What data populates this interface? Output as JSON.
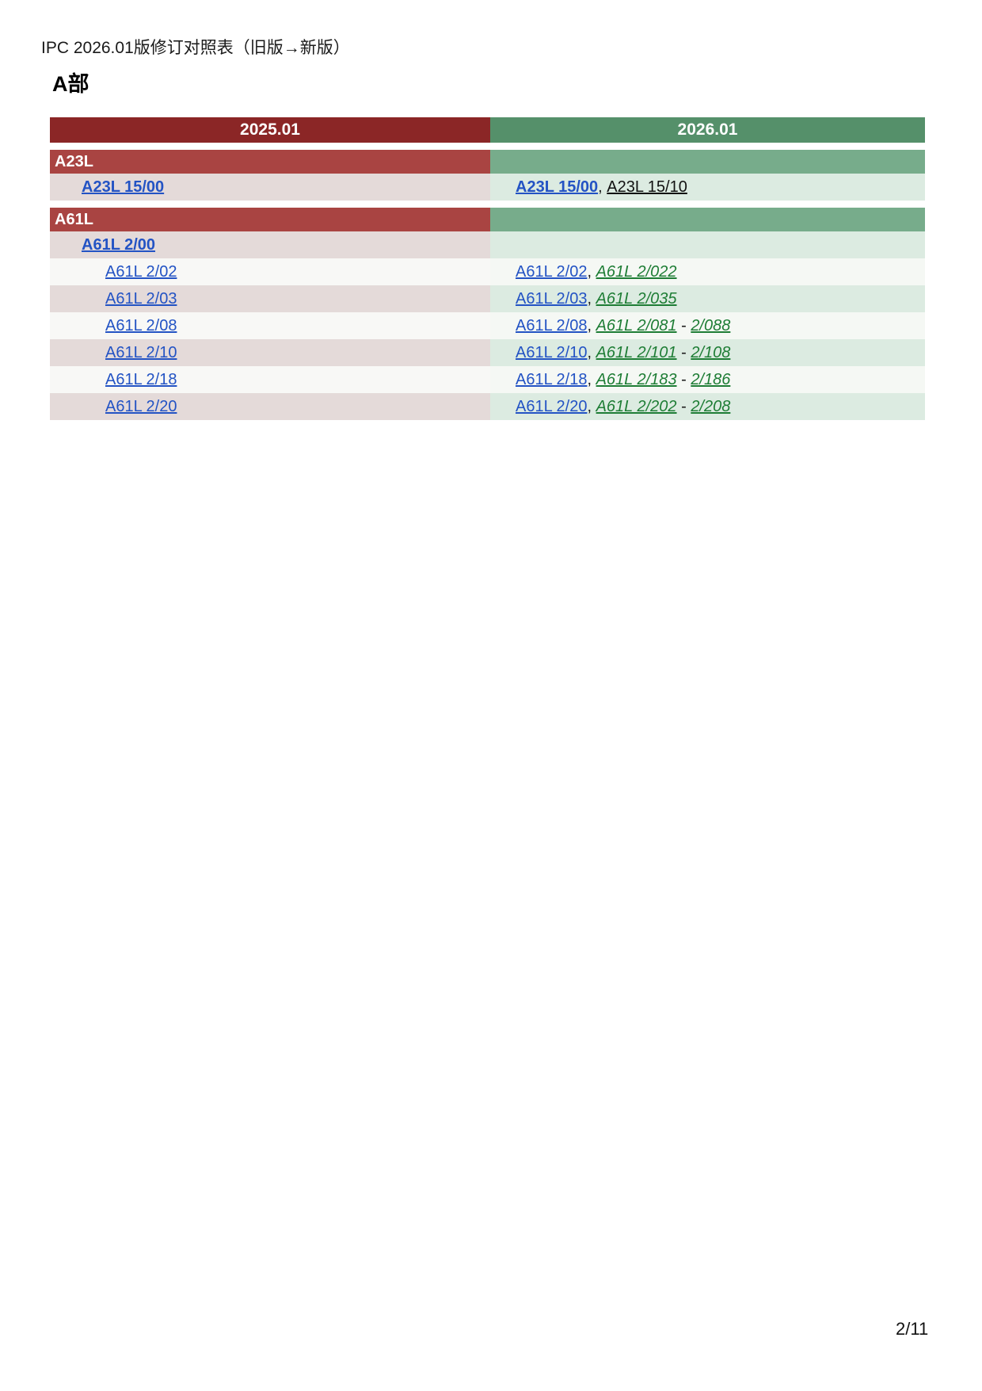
{
  "page": {
    "title": "IPC 2026.01版修订对照表（旧版→新版）",
    "section_heading": "A部",
    "page_number": "2/11"
  },
  "colors": {
    "header_old_bg": "#8b2626",
    "header_new_bg": "#55906a",
    "banner_old_bg": "#a94442",
    "banner_new_bg": "#77ac8b",
    "row_old_tint": "#e4dad9",
    "row_new_tint": "#dcebe1",
    "row_plain_old": "#f8f8f6",
    "row_plain_new": "#f5f8f4",
    "link_blue": "#2353c4",
    "link_green": "#1e7d35",
    "link_black": "#111111"
  },
  "table": {
    "column_headers": [
      "2025.01",
      "2026.01"
    ],
    "sections": [
      {
        "code": "A23L",
        "rows": [
          {
            "indent": 1,
            "shade": "tint",
            "old": [
              {
                "text": "A23L 15/00",
                "style": "blue-bold"
              }
            ],
            "new": [
              {
                "text": "A23L 15/00",
                "style": "blue-bold"
              },
              {
                "text": ", ",
                "style": "sep"
              },
              {
                "text": "A23L 15/10",
                "style": "black-link"
              }
            ]
          }
        ]
      },
      {
        "code": "A61L",
        "rows": [
          {
            "indent": 1,
            "shade": "tint",
            "old": [
              {
                "text": "A61L 2/00",
                "style": "blue-bold"
              }
            ],
            "new": []
          },
          {
            "indent": 2,
            "shade": "plain",
            "old": [
              {
                "text": "A61L 2/02",
                "style": "blue"
              }
            ],
            "new": [
              {
                "text": "A61L 2/02",
                "style": "blue"
              },
              {
                "text": ", ",
                "style": "sep"
              },
              {
                "text": "A61L 2/022",
                "style": "green"
              }
            ]
          },
          {
            "indent": 2,
            "shade": "tint",
            "old": [
              {
                "text": "A61L 2/03",
                "style": "blue"
              }
            ],
            "new": [
              {
                "text": "A61L 2/03",
                "style": "blue"
              },
              {
                "text": ", ",
                "style": "sep"
              },
              {
                "text": "A61L 2/035",
                "style": "green"
              }
            ]
          },
          {
            "indent": 2,
            "shade": "plain",
            "old": [
              {
                "text": "A61L 2/08",
                "style": "blue"
              }
            ],
            "new": [
              {
                "text": "A61L 2/08",
                "style": "blue"
              },
              {
                "text": ", ",
                "style": "sep"
              },
              {
                "text": "A61L 2/081",
                "style": "green"
              },
              {
                "text": " - ",
                "style": "sep"
              },
              {
                "text": "2/088",
                "style": "green"
              }
            ]
          },
          {
            "indent": 2,
            "shade": "tint",
            "old": [
              {
                "text": "A61L 2/10",
                "style": "blue"
              }
            ],
            "new": [
              {
                "text": "A61L 2/10",
                "style": "blue"
              },
              {
                "text": ", ",
                "style": "sep"
              },
              {
                "text": "A61L 2/101",
                "style": "green"
              },
              {
                "text": " - ",
                "style": "sep"
              },
              {
                "text": "2/108",
                "style": "green"
              }
            ]
          },
          {
            "indent": 2,
            "shade": "plain",
            "old": [
              {
                "text": "A61L 2/18",
                "style": "blue"
              }
            ],
            "new": [
              {
                "text": "A61L 2/18",
                "style": "blue"
              },
              {
                "text": ", ",
                "style": "sep"
              },
              {
                "text": "A61L 2/183",
                "style": "green"
              },
              {
                "text": " - ",
                "style": "sep"
              },
              {
                "text": "2/186",
                "style": "green"
              }
            ]
          },
          {
            "indent": 2,
            "shade": "tint",
            "old": [
              {
                "text": "A61L 2/20",
                "style": "blue"
              }
            ],
            "new": [
              {
                "text": "A61L 2/20",
                "style": "blue"
              },
              {
                "text": ", ",
                "style": "sep"
              },
              {
                "text": "A61L 2/202",
                "style": "green"
              },
              {
                "text": " - ",
                "style": "sep"
              },
              {
                "text": "2/208",
                "style": "green"
              }
            ]
          }
        ]
      }
    ]
  }
}
